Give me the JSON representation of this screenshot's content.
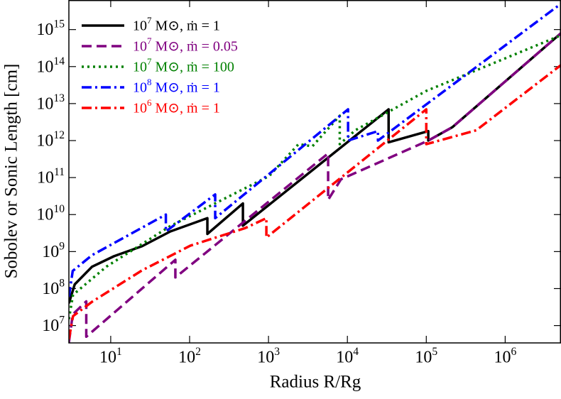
{
  "chart_data": {
    "type": "line",
    "xlabel": "Radius R/Rg",
    "ylabel": "Sobolev or Sonic Length [cm]",
    "xscale": "log",
    "yscale": "log",
    "xlim": [
      2.95,
      5100000
    ],
    "ylim": [
      3400000,
      6300000000000000
    ],
    "xticks": [
      {
        "value": 10,
        "label": "10^1"
      },
      {
        "value": 100,
        "label": "10^2"
      },
      {
        "value": 1000,
        "label": "10^3"
      },
      {
        "value": 10000,
        "label": "10^4"
      },
      {
        "value": 100000,
        "label": "10^5"
      },
      {
        "value": 1000000,
        "label": "10^6"
      }
    ],
    "yticks": [
      {
        "value": 10000000,
        "label": "10^7"
      },
      {
        "value": 100000000,
        "label": "10^8"
      },
      {
        "value": 1000000000,
        "label": "10^9"
      },
      {
        "value": 10000000000,
        "label": "10^10"
      },
      {
        "value": 100000000000,
        "label": "10^11"
      },
      {
        "value": 1000000000000,
        "label": "10^12"
      },
      {
        "value": 10000000000000,
        "label": "10^13"
      },
      {
        "value": 100000000000000,
        "label": "10^14"
      },
      {
        "value": 1000000000000000,
        "label": "10^15"
      }
    ],
    "legend": "upper left",
    "series": [
      {
        "name": "10^7 M⊙, ṁ = 1",
        "color": "#000000",
        "linestyle": "solid",
        "x": [
          2.95,
          3.5,
          5.8,
          11,
          25,
          57,
          168,
          168,
          474,
          474,
          33300,
          33300,
          106000,
          106000,
          214000,
          5100000
        ],
        "values": [
          40000000,
          130000000,
          390000000,
          750000000,
          1400000000,
          3500000000,
          8000000000,
          3000000000,
          20000000000,
          5000000000,
          7000000000000,
          900000000000,
          1800000000000,
          1000000000000,
          2300000000000,
          800000000000000
        ]
      },
      {
        "name": "10^7 M⊙, ṁ = 0.05",
        "color": "#800080",
        "linestyle": "dashed",
        "x": [
          2.95,
          3.3,
          4.9,
          4.9,
          66,
          66,
          5700,
          5700,
          8300,
          106000,
          214000,
          5100000
        ],
        "values": [
          3500000,
          20000000,
          45000000,
          5000000,
          600000000,
          200000000,
          450000000000,
          25000000000,
          90000000000,
          1000000000000,
          2300000000000,
          800000000000000
        ]
      },
      {
        "name": "10^7 M⊙, ṁ = 100",
        "color": "#008000",
        "linestyle": "dotted",
        "x": [
          2.95,
          3.33,
          8.8,
          57,
          1020,
          2400,
          3600,
          8000,
          8000,
          12600,
          100000,
          5100000
        ],
        "values": [
          15000000,
          68000000,
          390000000,
          4900000000,
          110000000000,
          800000000000,
          700000000000,
          4700000000000,
          800000000000,
          1900000000000,
          22000000000000,
          700000000000000
        ]
      },
      {
        "name": "10^8 M⊙, ṁ = 1",
        "color": "#0000ff",
        "linestyle": "dashdot",
        "x": [
          2.95,
          3.3,
          5.8,
          50,
          50,
          211,
          211,
          10200,
          10200,
          24400,
          24400,
          5100000
        ],
        "values": [
          60000000,
          300000000,
          800000000,
          10000000000,
          3500000000,
          35000000000,
          8000000000,
          7000000000000,
          1000000000000,
          1800000000000,
          1000000000000,
          5000000000000000
        ]
      },
      {
        "name": "10^6 M⊙, ṁ = 1",
        "color": "#ff0000",
        "linestyle": "dashdot",
        "x": [
          2.95,
          3.33,
          5.8,
          24.9,
          102,
          505,
          940,
          940,
          100000,
          100000,
          430000,
          5100000
        ],
        "values": [
          4300000,
          18000000,
          44000000,
          310000000,
          1440000000,
          4300000000,
          8000000000,
          2400000000,
          7000000000000,
          800000000000,
          1900000000000,
          110000000000000
        ]
      }
    ]
  }
}
